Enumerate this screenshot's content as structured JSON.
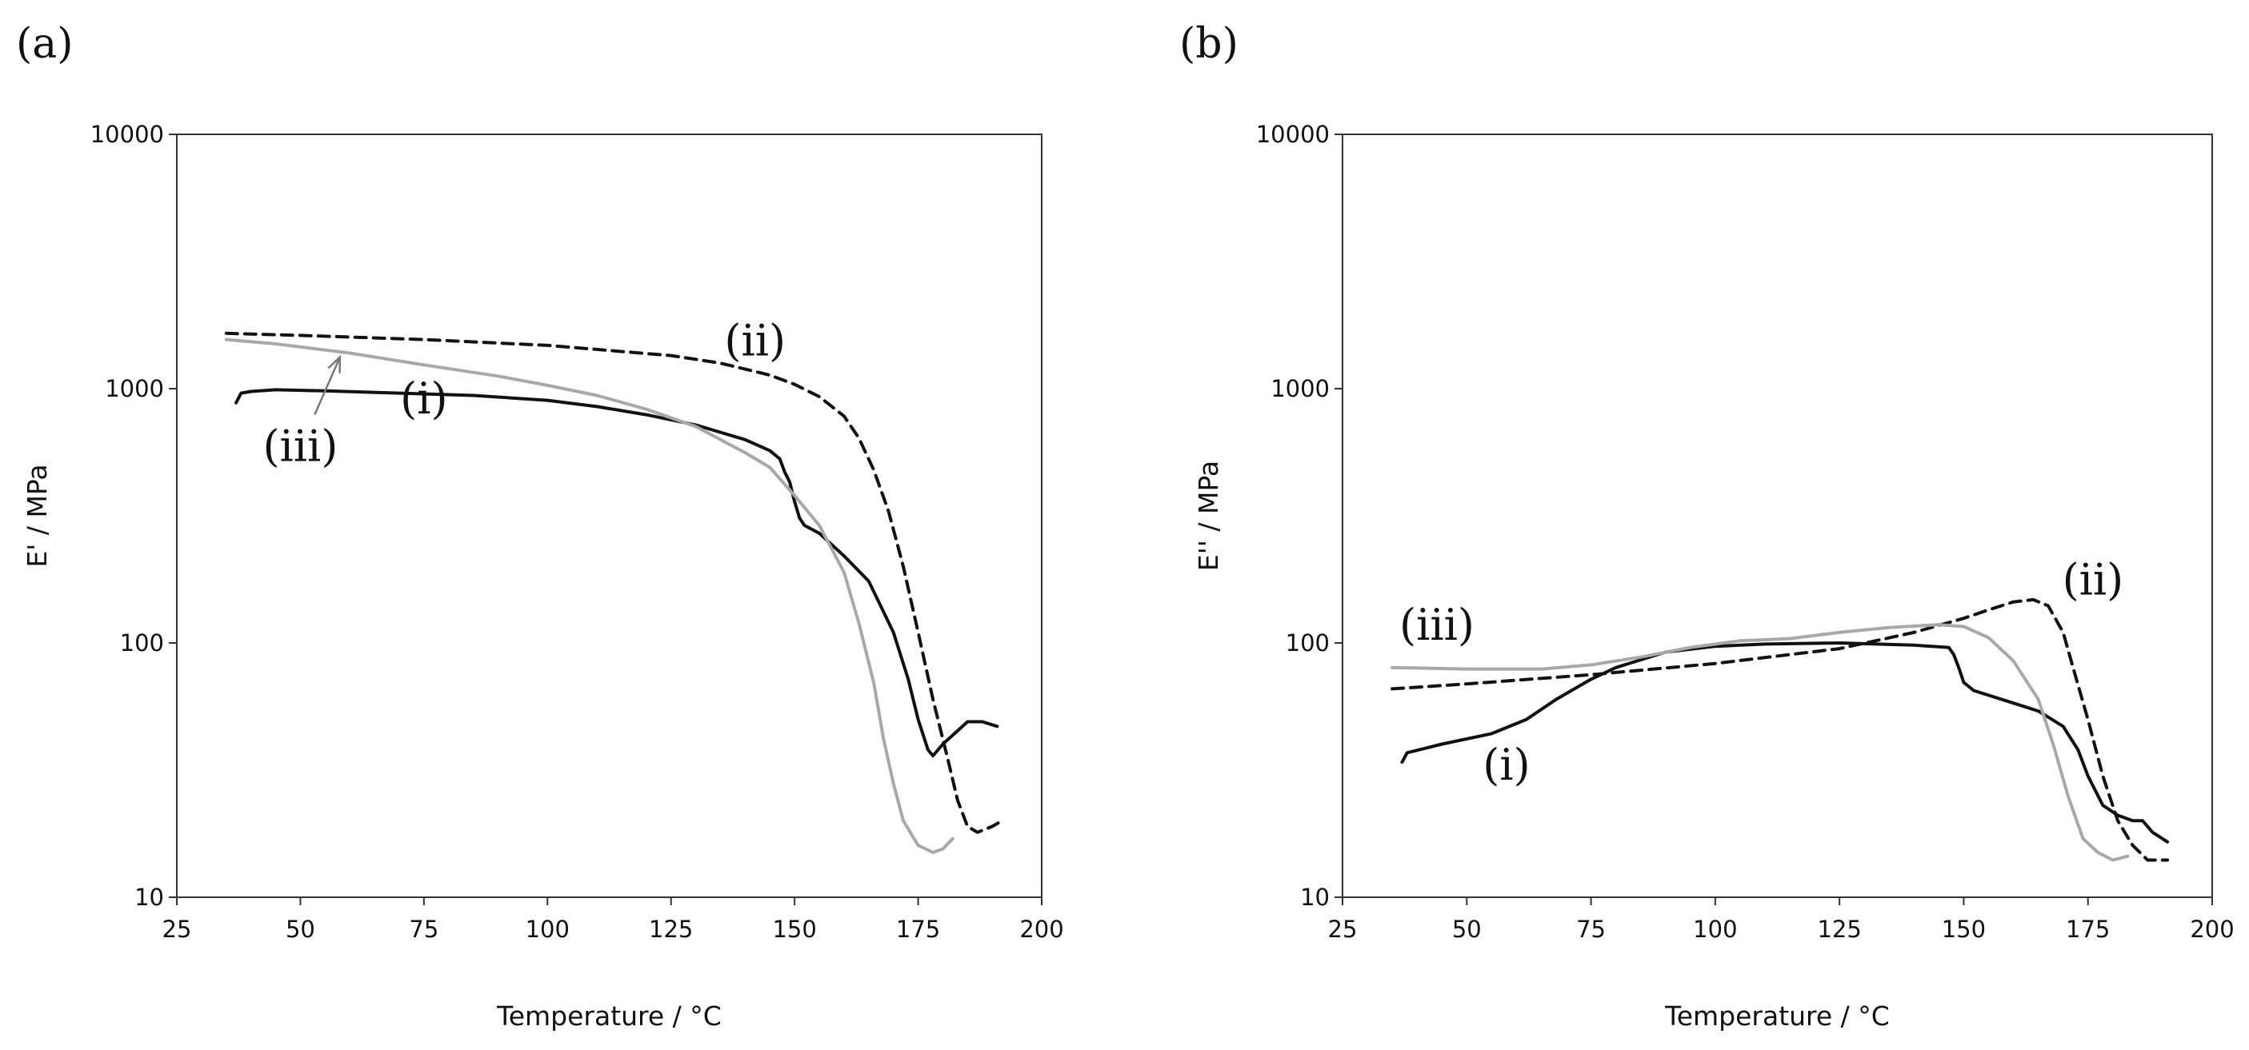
{
  "chart_data": [
    {
      "type": "line",
      "panel_label": "(a)",
      "xlabel": "Temperature / °C",
      "ylabel": "E' / MPa",
      "xlim": [
        25,
        200
      ],
      "ylim": [
        10,
        10000
      ],
      "yscale": "log",
      "x_ticks": [
        25,
        50,
        75,
        100,
        125,
        150,
        175,
        200
      ],
      "y_ticks": [
        10,
        100,
        1000,
        10000
      ],
      "grid": false,
      "legend": "none",
      "series": [
        {
          "name": "(i)",
          "color": "#111111",
          "dash": "solid",
          "points": [
            [
              37,
              880
            ],
            [
              38,
              960
            ],
            [
              40,
              975
            ],
            [
              45,
              990
            ],
            [
              55,
              980
            ],
            [
              70,
              960
            ],
            [
              85,
              940
            ],
            [
              100,
              900
            ],
            [
              110,
              850
            ],
            [
              120,
              790
            ],
            [
              130,
              720
            ],
            [
              140,
              630
            ],
            [
              145,
              570
            ],
            [
              147,
              530
            ],
            [
              148,
              470
            ],
            [
              149,
              430
            ],
            [
              150,
              360
            ],
            [
              151,
              310
            ],
            [
              152,
              290
            ],
            [
              155,
              270
            ],
            [
              160,
              220
            ],
            [
              165,
              175
            ],
            [
              170,
              110
            ],
            [
              173,
              72
            ],
            [
              175,
              50
            ],
            [
              177,
              38
            ],
            [
              178,
              36
            ],
            [
              180,
              40
            ],
            [
              185,
              49
            ],
            [
              188,
              49
            ],
            [
              191,
              47
            ]
          ]
        },
        {
          "name": "(ii)",
          "color": "#111111",
          "dash": "dashed",
          "points": [
            [
              35,
              1650
            ],
            [
              50,
              1620
            ],
            [
              75,
              1560
            ],
            [
              100,
              1480
            ],
            [
              125,
              1350
            ],
            [
              135,
              1260
            ],
            [
              145,
              1130
            ],
            [
              150,
              1040
            ],
            [
              155,
              930
            ],
            [
              160,
              780
            ],
            [
              163,
              640
            ],
            [
              166,
              480
            ],
            [
              169,
              330
            ],
            [
              172,
              200
            ],
            [
              175,
              110
            ],
            [
              178,
              60
            ],
            [
              181,
              35
            ],
            [
              183,
              24
            ],
            [
              185,
              19
            ],
            [
              187,
              18
            ],
            [
              190,
              19
            ],
            [
              192,
              20
            ]
          ]
        },
        {
          "name": "(iii)",
          "color": "#a8a8a8",
          "dash": "solid",
          "points": [
            [
              35,
              1560
            ],
            [
              45,
              1500
            ],
            [
              60,
              1380
            ],
            [
              75,
              1240
            ],
            [
              90,
              1120
            ],
            [
              100,
              1030
            ],
            [
              110,
              940
            ],
            [
              120,
              830
            ],
            [
              130,
              710
            ],
            [
              140,
              560
            ],
            [
              145,
              490
            ],
            [
              150,
              380
            ],
            [
              155,
              290
            ],
            [
              160,
              190
            ],
            [
              163,
              120
            ],
            [
              166,
              70
            ],
            [
              168,
              42
            ],
            [
              170,
              28
            ],
            [
              172,
              20
            ],
            [
              175,
              16
            ],
            [
              178,
              15
            ],
            [
              180,
              15.5
            ],
            [
              182,
              17
            ]
          ]
        }
      ],
      "annotations": [
        {
          "text": "(i)",
          "x": 75,
          "y": 800
        },
        {
          "text": "(ii)",
          "x": 142,
          "y": 1350
        },
        {
          "text": "(iii)",
          "x": 50,
          "y": 520,
          "arrow_to": [
            58,
            1330
          ]
        }
      ]
    },
    {
      "type": "line",
      "panel_label": "(b)",
      "xlabel": "Temperature / °C",
      "ylabel": "E'' / MPa",
      "xlim": [
        25,
        200
      ],
      "ylim": [
        10,
        10000
      ],
      "yscale": "log",
      "x_ticks": [
        25,
        50,
        75,
        100,
        125,
        150,
        175,
        200
      ],
      "y_ticks": [
        10,
        100,
        1000,
        10000
      ],
      "grid": false,
      "legend": "none",
      "series": [
        {
          "name": "(i)",
          "color": "#111111",
          "dash": "solid",
          "points": [
            [
              37,
              34
            ],
            [
              38,
              37
            ],
            [
              45,
              40
            ],
            [
              55,
              44
            ],
            [
              62,
              50
            ],
            [
              68,
              60
            ],
            [
              75,
              72
            ],
            [
              80,
              80
            ],
            [
              90,
              92
            ],
            [
              100,
              97
            ],
            [
              110,
              99
            ],
            [
              125,
              100
            ],
            [
              140,
              98
            ],
            [
              147,
              96
            ],
            [
              148,
              90
            ],
            [
              149,
              80
            ],
            [
              150,
              70
            ],
            [
              152,
              65
            ],
            [
              160,
              58
            ],
            [
              165,
              54
            ],
            [
              170,
              47
            ],
            [
              173,
              38
            ],
            [
              175,
              30
            ],
            [
              178,
              23
            ],
            [
              181,
              21
            ],
            [
              184,
              20
            ],
            [
              186,
              20
            ],
            [
              188,
              18
            ],
            [
              191,
              16.5
            ]
          ]
        },
        {
          "name": "(ii)",
          "color": "#111111",
          "dash": "dashed",
          "points": [
            [
              35,
              66
            ],
            [
              50,
              69
            ],
            [
              75,
              75
            ],
            [
              100,
              83
            ],
            [
              125,
              95
            ],
            [
              140,
              110
            ],
            [
              150,
              125
            ],
            [
              155,
              135
            ],
            [
              160,
              145
            ],
            [
              164,
              148
            ],
            [
              167,
              140
            ],
            [
              170,
              110
            ],
            [
              172,
              80
            ],
            [
              175,
              50
            ],
            [
              178,
              30
            ],
            [
              181,
              20
            ],
            [
              184,
              16
            ],
            [
              187,
              14
            ],
            [
              191,
              14
            ]
          ]
        },
        {
          "name": "(iii)",
          "color": "#a8a8a8",
          "dash": "solid",
          "points": [
            [
              35,
              80
            ],
            [
              50,
              79
            ],
            [
              65,
              79
            ],
            [
              75,
              82
            ],
            [
              85,
              88
            ],
            [
              95,
              96
            ],
            [
              105,
              102
            ],
            [
              115,
              104
            ],
            [
              125,
              110
            ],
            [
              135,
              115
            ],
            [
              145,
              118
            ],
            [
              150,
              116
            ],
            [
              155,
              105
            ],
            [
              160,
              85
            ],
            [
              165,
              60
            ],
            [
              168,
              40
            ],
            [
              171,
              25
            ],
            [
              174,
              17
            ],
            [
              177,
              15
            ],
            [
              180,
              14
            ],
            [
              183,
              14.5
            ]
          ]
        }
      ],
      "annotations": [
        {
          "text": "(i)",
          "x": 58,
          "y": 29
        },
        {
          "text": "(ii)",
          "x": 176,
          "y": 155
        },
        {
          "text": "(iii)",
          "x": 44,
          "y": 103
        }
      ]
    }
  ]
}
